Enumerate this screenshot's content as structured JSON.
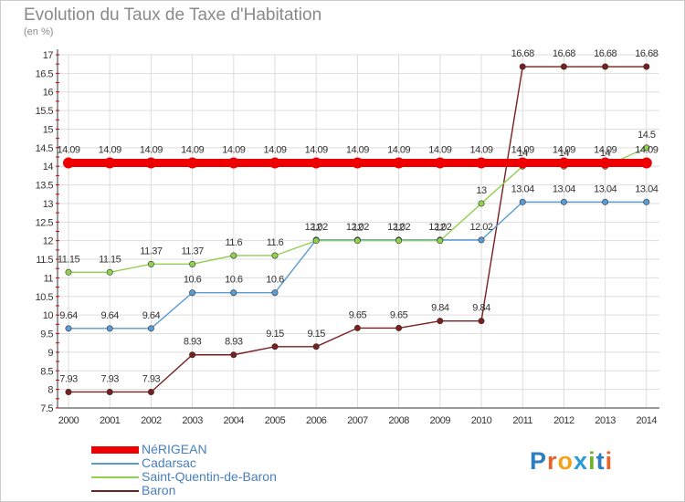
{
  "title": "Evolution du Taux de Taxe d'Habitation",
  "subtitle": "(en %)",
  "logo_text": "Proxiti",
  "logo_colors": [
    "#2b7ec1",
    "#e8622a",
    "#f2a41c",
    "#2b9ad6",
    "#6bb52b",
    "#2b7ec1",
    "#e8622a"
  ],
  "chart_data": {
    "type": "line",
    "x": [
      "2000",
      "2001",
      "2002",
      "2003",
      "2004",
      "2005",
      "2006",
      "2007",
      "2008",
      "2009",
      "2010",
      "2011",
      "2012",
      "2013",
      "2014"
    ],
    "ylim": [
      7.5,
      17
    ],
    "yticks": [
      "7.5",
      "8",
      "8.5",
      "9",
      "9.5",
      "10",
      "10.5",
      "11",
      "11.5",
      "12",
      "12.5",
      "13",
      "13.5",
      "14",
      "14.5",
      "15",
      "15.5",
      "16",
      "16.5",
      "17"
    ],
    "grid": true,
    "series": [
      {
        "name": "NéRIGEAN",
        "color": "#ee0000",
        "values": [
          14.09,
          14.09,
          14.09,
          14.09,
          14.09,
          14.09,
          14.09,
          14.09,
          14.09,
          14.09,
          14.09,
          14.09,
          14.09,
          14.09,
          14.09
        ],
        "labels": [
          "14.09",
          "14.09",
          "14.09",
          "14.09",
          "14.09",
          "14.09",
          "14.09",
          "14.09",
          "14.09",
          "14.09",
          "14.09",
          "14.09",
          "14.09",
          "14.09",
          "14.09"
        ]
      },
      {
        "name": "Cadarsac",
        "color": "#5b9bd5",
        "values": [
          9.64,
          9.64,
          9.64,
          10.6,
          10.6,
          10.6,
          12.02,
          12.02,
          12.02,
          12.02,
          12.02,
          13.04,
          13.04,
          13.04,
          13.04
        ],
        "labels": [
          "9.64",
          "9.64",
          "9.64",
          "10.6",
          "10.6",
          "10.6",
          "12.02",
          "12.02",
          "12.02",
          "12.02",
          "12.02",
          "13.04",
          "13.04",
          "13.04",
          "13.04"
        ]
      },
      {
        "name": "Saint-Quentin-de-Baron",
        "color": "#92d050",
        "values": [
          11.15,
          11.15,
          11.37,
          11.37,
          11.6,
          11.6,
          12,
          12,
          12,
          12,
          13,
          14,
          14,
          14,
          14.5
        ],
        "labels": [
          "11.15",
          "11.15",
          "11.37",
          "11.37",
          "11.6",
          "11.6",
          "12",
          "12",
          "12",
          "12",
          "13",
          "14",
          "14",
          "14",
          "14.5"
        ]
      },
      {
        "name": "Baron",
        "color": "#7a1f1f",
        "values": [
          7.93,
          7.93,
          7.93,
          8.93,
          8.93,
          9.15,
          9.15,
          9.65,
          9.65,
          9.84,
          9.84,
          16.68,
          16.68,
          16.68,
          16.68
        ],
        "labels": [
          "7.93",
          "7.93",
          "7.93",
          "8.93",
          "8.93",
          "9.15",
          "9.15",
          "9.65",
          "9.65",
          "9.84",
          "9.84",
          "16.68",
          "16.68",
          "16.68",
          "16.68"
        ]
      }
    ]
  }
}
